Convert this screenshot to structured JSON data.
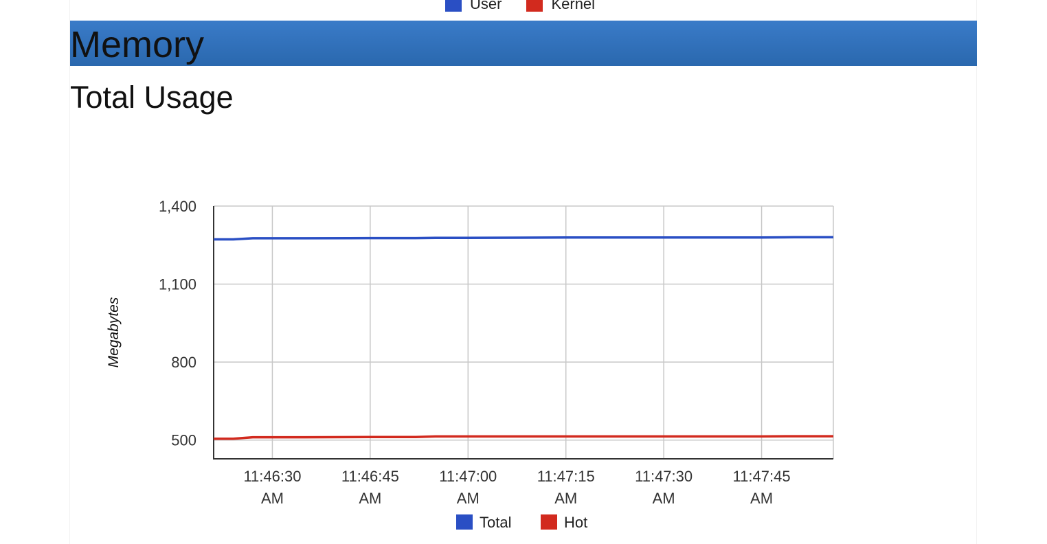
{
  "top_legend": {
    "items": [
      {
        "label": "User",
        "color": "#2a4fc4"
      },
      {
        "label": "Kernel",
        "color": "#d22a1e"
      }
    ]
  },
  "section": {
    "title": "Memory",
    "color": "#2f70bd"
  },
  "subsection": {
    "title": "Total Usage"
  },
  "chart_data": {
    "type": "line",
    "title": "",
    "xlabel": "",
    "ylabel": "Megabytes",
    "ylim": [
      428,
      1400
    ],
    "yticks": [
      500,
      800,
      1100,
      1400
    ],
    "ytick_labels": [
      "500",
      "800",
      "1,100",
      "1,400"
    ],
    "xlim": [
      "11:46:21 AM",
      "11:47:56 AM"
    ],
    "xticks": [
      "11:46:30 AM",
      "11:46:45 AM",
      "11:47:00 AM",
      "11:47:15 AM",
      "11:47:30 AM",
      "11:47:45 AM"
    ],
    "xtick_labels": [
      [
        "11:46:30",
        "AM"
      ],
      [
        "11:46:45",
        "AM"
      ],
      [
        "11:47:00",
        "AM"
      ],
      [
        "11:47:15",
        "AM"
      ],
      [
        "11:47:30",
        "AM"
      ],
      [
        "11:47:45",
        "AM"
      ]
    ],
    "grid": true,
    "legend_position": "bottom",
    "x": [
      "11:46:21 AM",
      "11:46:24 AM",
      "11:46:27 AM",
      "11:46:35 AM",
      "11:46:45 AM",
      "11:46:52 AM",
      "11:46:55 AM",
      "11:47:00 AM",
      "11:47:15 AM",
      "11:47:30 AM",
      "11:47:45 AM",
      "11:47:50 AM",
      "11:47:56 AM"
    ],
    "series": [
      {
        "name": "Total",
        "color": "#2a4fc4",
        "values": [
          1272,
          1272,
          1276,
          1276,
          1277,
          1277,
          1278,
          1278,
          1279,
          1279,
          1279,
          1280,
          1280
        ]
      },
      {
        "name": "Hot",
        "color": "#d22a1e",
        "values": [
          505,
          505,
          511,
          511,
          512,
          512,
          514,
          514,
          514,
          514,
          514,
          515,
          515
        ]
      }
    ]
  }
}
